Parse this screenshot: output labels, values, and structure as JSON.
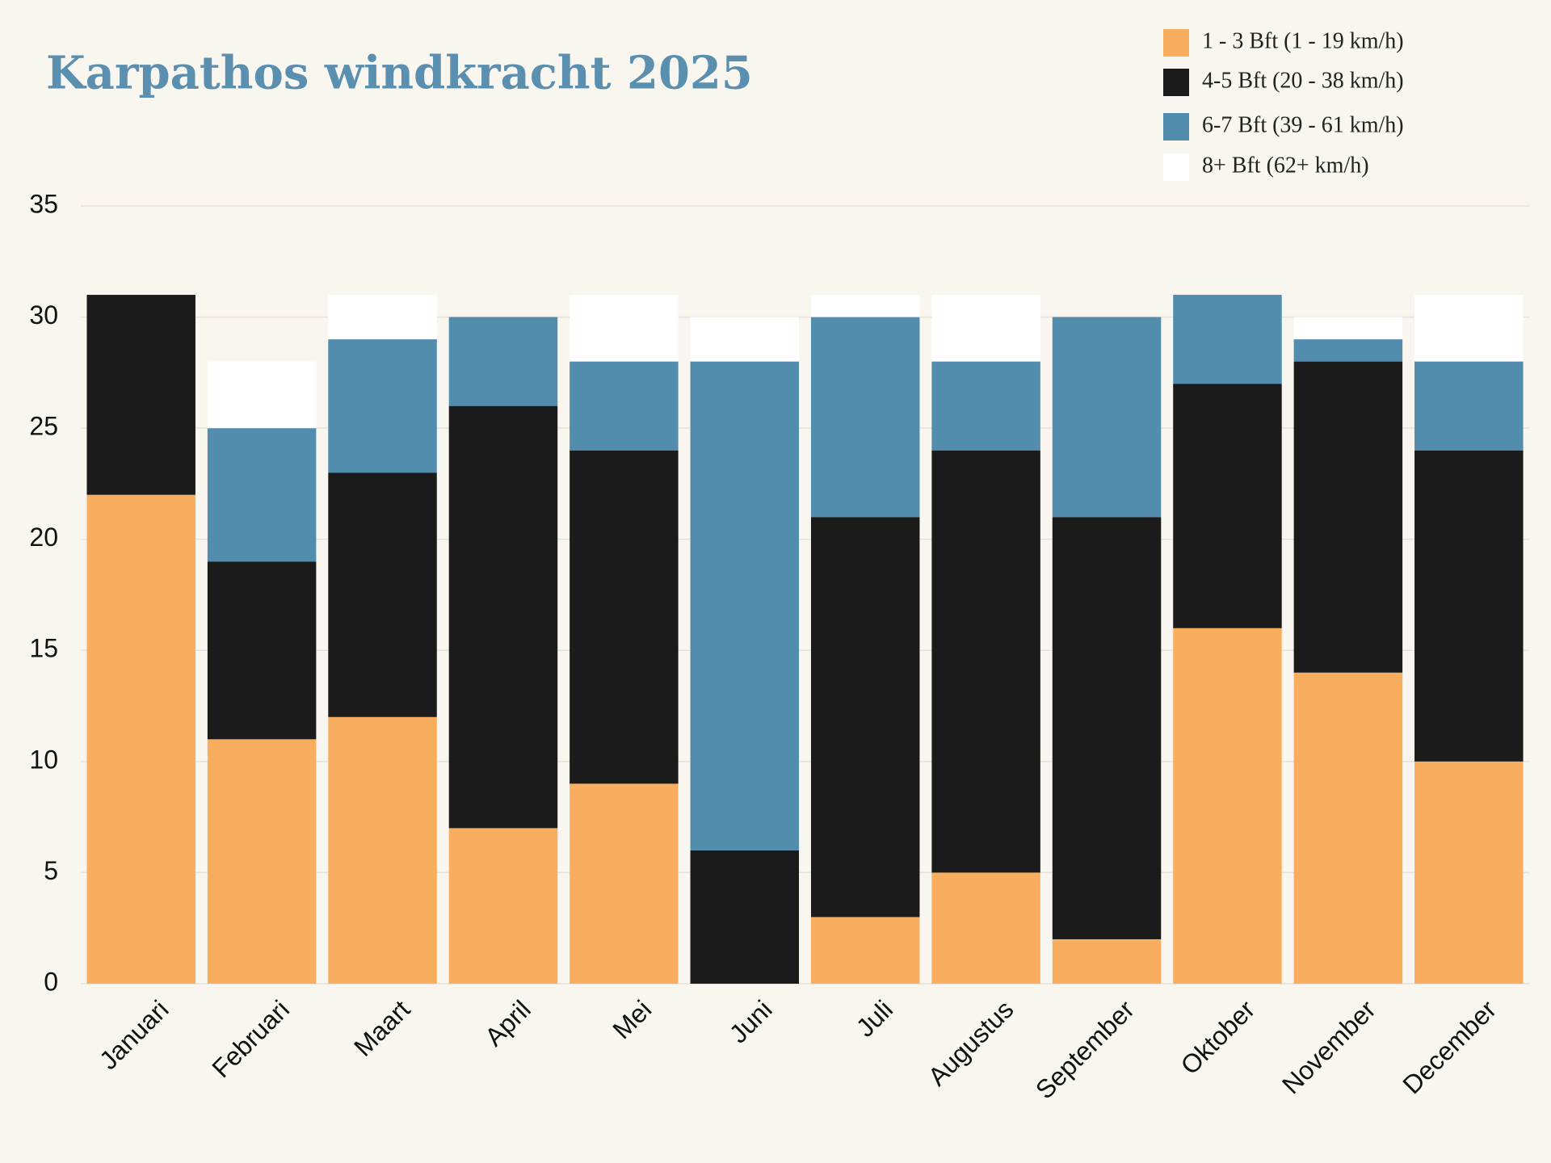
{
  "chart_data": {
    "type": "stacked_bar",
    "title": "Karpathos windkracht 2025",
    "categories": [
      "Januari",
      "Februari",
      "Maart",
      "April",
      "Mei",
      "Juni",
      "Juli",
      "Augustus",
      "September",
      "Oktober",
      "November",
      "December"
    ],
    "series": [
      {
        "name": "1 - 3 Bft (1 - 19 km/h)",
        "color": "#f8ae5e",
        "values": [
          22,
          11,
          12,
          7,
          9,
          0,
          3,
          5,
          2,
          16,
          14,
          10
        ]
      },
      {
        "name": "4-5 Bft (20 - 38 km/h)",
        "color": "#1b1b1b",
        "values": [
          9,
          8,
          11,
          19,
          15,
          6,
          18,
          19,
          19,
          11,
          14,
          14
        ]
      },
      {
        "name": "6-7 Bft (39 - 61 km/h)",
        "color": "#528dae",
        "values": [
          0,
          6,
          6,
          4,
          4,
          22,
          9,
          4,
          9,
          4,
          1,
          4
        ]
      },
      {
        "name": "8+ Bft (62+ km/h)",
        "color": "#ffffff",
        "values": [
          0,
          3,
          2,
          0,
          3,
          2,
          1,
          3,
          0,
          0,
          1,
          3
        ]
      }
    ],
    "ylim": [
      0,
      35
    ],
    "yticks": [
      0,
      5,
      10,
      15,
      20,
      25,
      30,
      35
    ],
    "grid": true,
    "legend": "top-right"
  }
}
